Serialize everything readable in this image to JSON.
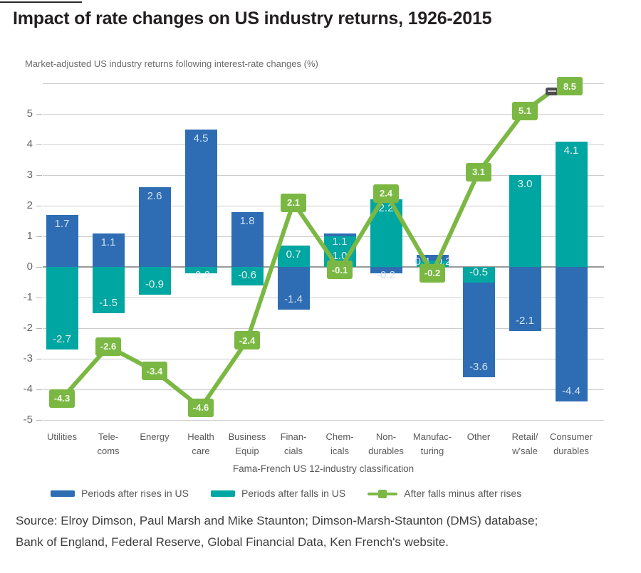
{
  "page": {
    "title": "Impact of rate changes on US industry returns, 1926-2015",
    "subtitle": "Market-adjusted US industry returns following interest-rate changes (%)",
    "source_lines": [
      "Source: Elroy Dimson, Paul Marsh and Mike Staunton; Dimson-Marsh-Staunton (DMS) database;",
      "Bank of England, Federal Reserve, Global Financial Data, Ken French's website."
    ]
  },
  "colors": {
    "rises": "#2e6db4",
    "falls": "#00a6a1",
    "diff": "#7bb843",
    "grid": "#cdcdcd",
    "zero_line": "#9a9a9a",
    "label_on_rises": "#cfe2f4",
    "label_on_falls": "#e6f5f3",
    "clip_marker": "#4d4d4f"
  },
  "chart_data": {
    "type": "bar+line",
    "title": "Impact of rate changes on US industry returns, 1926-2015",
    "subtitle": "Market-adjusted US industry returns following interest-rate changes (%)",
    "xlabel": "Fama-French US 12-industry classification",
    "ylabel": "",
    "ylim": [
      -5,
      6
    ],
    "yticks": [
      5,
      4,
      3,
      2,
      1,
      0,
      -1,
      -2,
      -3,
      -4,
      -5
    ],
    "grid": true,
    "legend_position": "bottom",
    "categories": [
      "Utilities",
      "Tele-\ncoms",
      "Energy",
      "Health\ncare",
      "Business\nEquip",
      "Finan-\ncials",
      "Chem-\nicals",
      "Non-\ndurables",
      "Manufac-\nturing",
      "Other",
      "Retail/\nw'sale",
      "Consumer\ndurables"
    ],
    "series": [
      {
        "name": "Periods after rises in US",
        "type": "bar",
        "color_key": "rises",
        "values": [
          1.7,
          1.1,
          2.6,
          4.5,
          1.8,
          -1.4,
          1.1,
          -0.2,
          0.4,
          -3.6,
          -2.1,
          -4.4
        ],
        "labels": [
          "1.7",
          "1.1",
          "2.6",
          "4.5",
          "1.8",
          "-1.4",
          "1.1",
          "-0.2",
          "0.4",
          "-3.6",
          "-2.1",
          "-4.4"
        ]
      },
      {
        "name": "Periods after falls in US",
        "type": "bar",
        "color_key": "falls",
        "values": [
          -2.7,
          -1.5,
          -0.9,
          -0.2,
          -0.6,
          0.7,
          1.0,
          2.2,
          0.2,
          -0.5,
          3.0,
          4.1
        ],
        "labels": [
          "-2.7",
          "-1.5",
          "-0.9",
          "-0.2",
          "-0.6",
          "0.7",
          "1.0",
          "2.2",
          "0.2",
          "-0.5",
          "3.0",
          "4.1"
        ]
      },
      {
        "name": "After falls minus after rises",
        "type": "line",
        "color_key": "diff",
        "values": [
          -4.3,
          -2.6,
          -3.4,
          -4.6,
          -2.4,
          2.1,
          -0.1,
          2.4,
          -0.2,
          3.1,
          5.1,
          8.5
        ],
        "labels": [
          "-4.3",
          "-2.6",
          "-3.4",
          "-4.6",
          "-2.4",
          "2.1",
          "-0.1",
          "2.4",
          "-0.2",
          "3.1",
          "5.1",
          "8.5"
        ],
        "last_point_clipped": true
      }
    ]
  }
}
